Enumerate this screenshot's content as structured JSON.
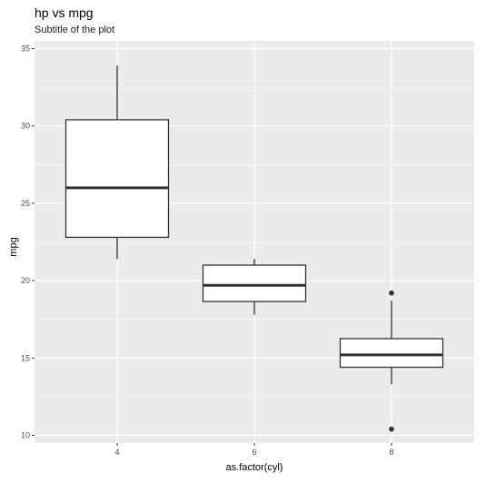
{
  "chart_data": {
    "type": "box",
    "title": "hp vs mpg",
    "subtitle": "Subtitle of the plot",
    "xlabel": "as.factor(cyl)",
    "ylabel": "mpg",
    "ylim": [
      9.5,
      35.5
    ],
    "yticks": [
      10,
      15,
      20,
      25,
      30,
      35
    ],
    "categories": [
      "4",
      "6",
      "8"
    ],
    "boxes": [
      {
        "category": "4",
        "lower_whisker": 21.4,
        "q1": 22.8,
        "median": 26.0,
        "q3": 30.4,
        "upper_whisker": 33.9,
        "outliers": []
      },
      {
        "category": "6",
        "lower_whisker": 17.8,
        "q1": 18.65,
        "median": 19.7,
        "q3": 21.0,
        "upper_whisker": 21.4,
        "outliers": []
      },
      {
        "category": "8",
        "lower_whisker": 13.3,
        "q1": 14.4,
        "median": 15.2,
        "q3": 16.25,
        "upper_whisker": 18.7,
        "outliers": [
          19.2,
          10.4
        ]
      }
    ],
    "grid": true,
    "legend": "none",
    "colors": {
      "panel": "#ebebeb",
      "grid": "#ffffff",
      "box_fill": "#ffffff",
      "box_stroke": "#333333",
      "text": "#000000",
      "tick_text": "#4d4d4d"
    }
  }
}
